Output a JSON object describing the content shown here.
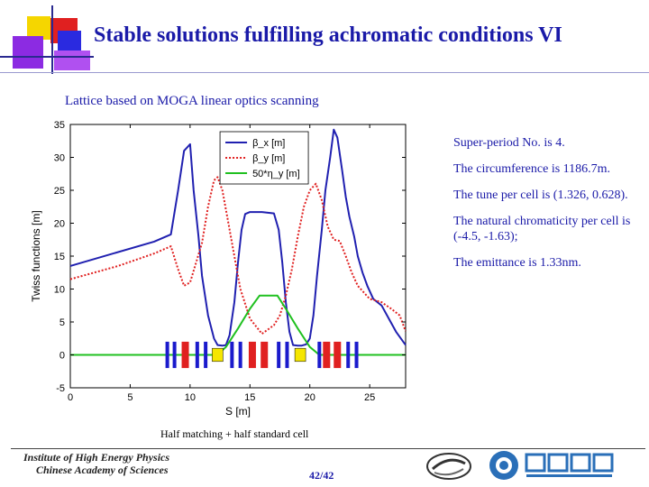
{
  "slide": {
    "title": "Stable solutions fulfilling achromatic conditions VI",
    "subtitle": "Lattice based on MOGA linear optics scanning",
    "notes": [
      "Super-period No. is 4.",
      "The circumference is 1186.7m.",
      "The tune per cell is (1.326, 0.628).",
      "The natural chromaticity per cell is (-4.5, -1.63);",
      "The emittance is 1.33nm."
    ],
    "caption": "Half matching + half standard cell",
    "institute": [
      "Institute of High Energy Physics",
      "Chinese Academy of Sciences"
    ],
    "page": "42/42",
    "colors": {
      "title": "#1a1aa8",
      "accent_yellow": "#f5d600",
      "accent_red": "#e02020",
      "accent_blue": "#2a2ae0",
      "accent_violet": "#8c2be2"
    }
  },
  "chart_data": {
    "type": "line",
    "xlabel": "S [m]",
    "ylabel": "Twiss functions [m]",
    "xlim": [
      0,
      28
    ],
    "ylim": [
      -5,
      35
    ],
    "xticks": [
      0,
      5,
      10,
      15,
      20,
      25
    ],
    "yticks": [
      -5,
      0,
      5,
      10,
      15,
      20,
      25,
      30,
      35
    ],
    "legend": "top-center",
    "series": [
      {
        "name": "β_x [m]",
        "color": "#2020b0",
        "style": "solid",
        "x": [
          0,
          7,
          8.4,
          9,
          9.5,
          10,
          10.3,
          10.7,
          11,
          11.5,
          12,
          12.3,
          12.7,
          13,
          13.3,
          13.7,
          14,
          14.3,
          14.6,
          15,
          16,
          17,
          17.4,
          17.7,
          18,
          18.3,
          18.6,
          19,
          19.3,
          19.7,
          20,
          20.3,
          20.6,
          21,
          21.3,
          21.7,
          22,
          22.3,
          22.7,
          23,
          23.3,
          23.7,
          24,
          24.4,
          24.8,
          25.3,
          26,
          26.6,
          27.2,
          28
        ],
        "y": [
          13.5,
          17.2,
          18.3,
          25,
          31,
          32,
          25,
          18,
          12,
          6,
          2.5,
          1.5,
          1.4,
          1.5,
          3,
          8,
          14,
          19,
          21.4,
          21.7,
          21.7,
          21.5,
          19,
          14,
          8,
          3.5,
          1.5,
          1.4,
          1.4,
          1.6,
          2.5,
          6,
          12,
          19,
          25,
          30,
          34.2,
          33,
          28,
          24,
          21,
          18,
          15,
          12.5,
          10.5,
          8.5,
          7.5,
          5.5,
          3.5,
          1.5
        ]
      },
      {
        "name": "β_y [m]",
        "color": "#e02020",
        "style": "dotted",
        "x": [
          0,
          4,
          7,
          8.4,
          9,
          9.5,
          10,
          10.5,
          11,
          11.5,
          12,
          12.3,
          12.7,
          13.2,
          13.7,
          14.2,
          15,
          16,
          17,
          17.5,
          18,
          18.5,
          19,
          19.5,
          20,
          20.5,
          21,
          21.5,
          22,
          22.5,
          23,
          23.5,
          24,
          25,
          26,
          26.8,
          27.5,
          28
        ],
        "y": [
          11.5,
          13.5,
          15.4,
          16.5,
          13,
          10.5,
          11,
          14,
          17,
          22.5,
          26.5,
          27,
          25,
          20,
          15,
          10,
          5.5,
          3.2,
          4.5,
          6,
          9,
          13,
          18,
          22.5,
          25,
          26,
          23.5,
          19.5,
          17.5,
          17.3,
          15,
          12.5,
          10.5,
          8.5,
          8,
          7,
          6,
          3.6
        ]
      },
      {
        "name": "50*η_y [m]",
        "color": "#20c020",
        "style": "solid",
        "x": [
          0,
          11.5,
          12.3,
          13,
          14,
          15,
          15.8,
          17.3,
          18,
          19,
          20,
          20.8,
          28
        ],
        "y": [
          0,
          0,
          0,
          1.2,
          4,
          7,
          9,
          9,
          7,
          4,
          1.2,
          0,
          0
        ]
      }
    ]
  }
}
